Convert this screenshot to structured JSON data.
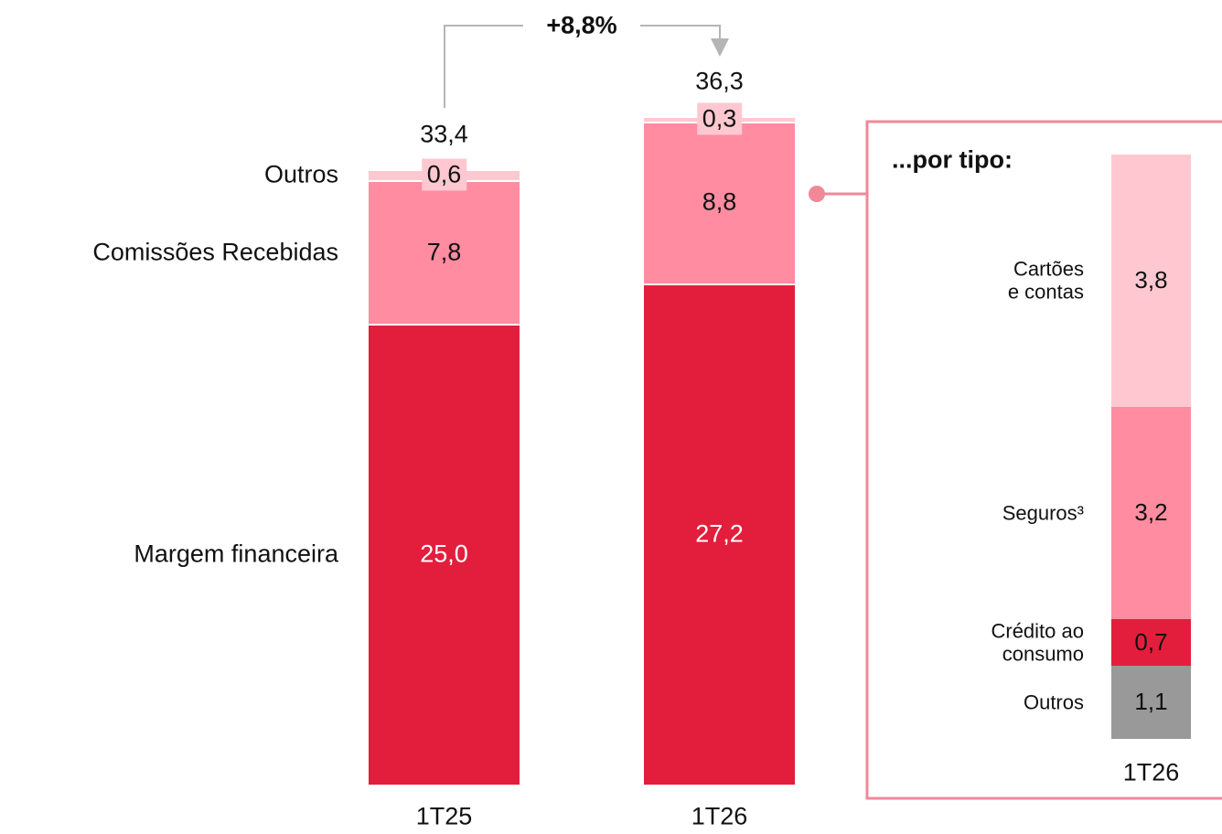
{
  "chart_data": [
    {
      "type": "bar",
      "stacked": true,
      "categories": [
        "1T25",
        "1T26"
      ],
      "series": [
        {
          "name": "Margem financeira",
          "color": "#e31e3c",
          "label_color": "#ffffff",
          "values": [
            25.0,
            27.2
          ],
          "value_labels": [
            "25,0",
            "27,2"
          ]
        },
        {
          "name": "Comissões Recebidas",
          "color": "#ff8ca0",
          "label_color": "#111111",
          "values": [
            7.8,
            8.8
          ],
          "value_labels": [
            "7,8",
            "8,8"
          ]
        },
        {
          "name": "Outros",
          "color": "#ffc8d0",
          "label_color": "#111111",
          "values": [
            0.6,
            0.3
          ],
          "value_labels": [
            "0,6",
            "0,3"
          ]
        }
      ],
      "totals": [
        33.4,
        36.3
      ],
      "total_labels": [
        "33,4",
        "36,3"
      ],
      "annotation": "+8,8%"
    },
    {
      "type": "bar",
      "stacked": true,
      "title": "...por tipo:",
      "categories": [
        "1T26"
      ],
      "series": [
        {
          "name": "Outros",
          "color": "#999999",
          "label_color": "#111111",
          "values": [
            1.1
          ],
          "value_labels": [
            "1,1"
          ]
        },
        {
          "name": "Crédito ao\nconsumo",
          "color": "#e31e3c",
          "label_color": "#111111",
          "values": [
            0.7
          ],
          "value_labels": [
            "0,7"
          ]
        },
        {
          "name": "Seguros³",
          "color": "#ff8ca0",
          "label_color": "#111111",
          "values": [
            3.2
          ],
          "value_labels": [
            "3,2"
          ]
        },
        {
          "name": "Cartões\ne contas",
          "color": "#ffc8d0",
          "label_color": "#111111",
          "values": [
            3.8
          ],
          "value_labels": [
            "3,8"
          ]
        }
      ]
    }
  ]
}
